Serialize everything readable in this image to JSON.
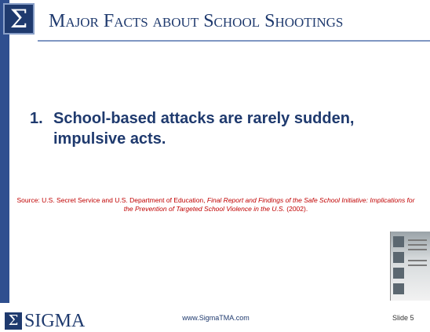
{
  "header": {
    "logo": "Σ",
    "title": "Major Facts about School Shootings"
  },
  "point": {
    "number": "1.",
    "text": "School-based attacks are rarely sudden, impulsive acts."
  },
  "source": {
    "prefix": "Source: U.S. Secret Service and U.S. Department of Education,",
    "title": "Final Report and Findings of the Safe School Initiative: Implications for the Prevention of Targeted School Violence in the U.S.",
    "year": "(2002)."
  },
  "footer": {
    "logo_symbol": "Σ",
    "logo_text": "SIGMA",
    "url": "www.SigmaTMA.com",
    "slide": "Slide 5"
  }
}
